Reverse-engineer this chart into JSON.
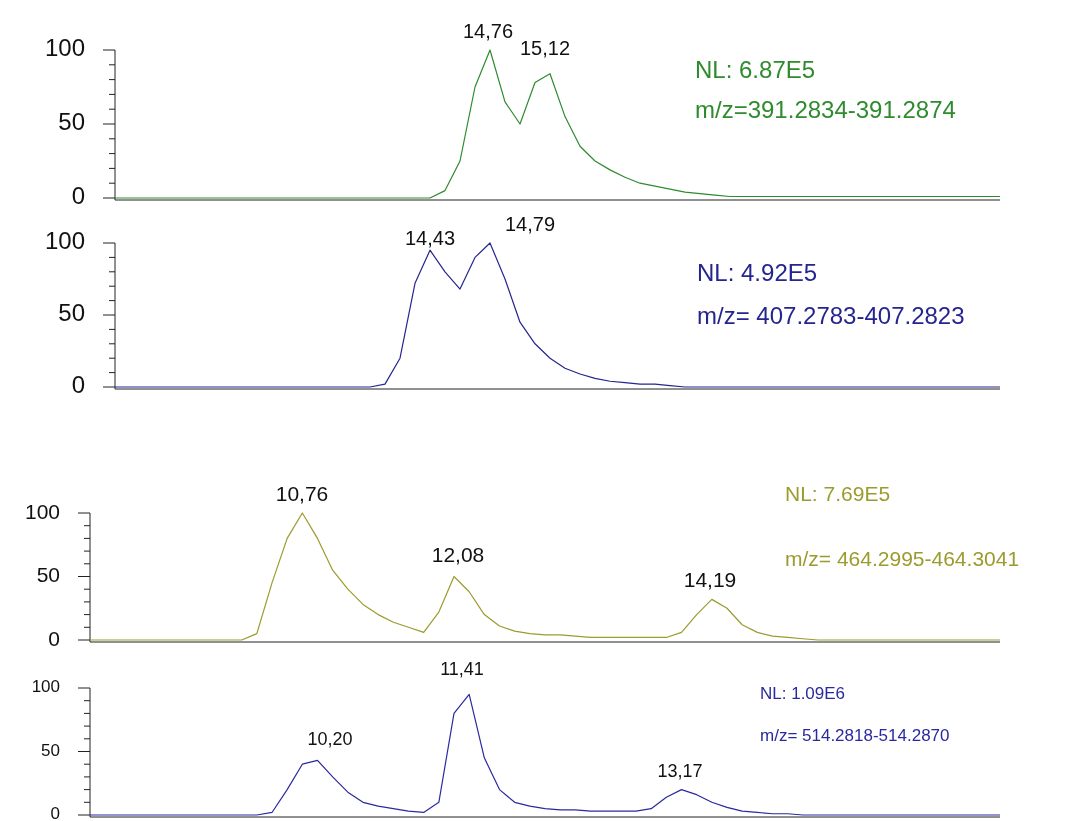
{
  "chart_data": [
    {
      "type": "line",
      "categories": [
        null,
        null,
        null,
        null,
        null,
        null,
        null,
        null,
        null,
        null,
        null,
        null,
        null,
        null,
        null,
        null,
        null,
        null,
        null,
        null,
        null,
        null,
        null,
        null,
        null,
        null,
        null,
        null,
        null,
        null,
        null,
        null,
        null,
        null,
        null,
        null,
        null,
        null,
        null,
        null,
        null,
        null,
        null,
        null,
        null,
        null,
        null,
        null,
        null,
        null,
        null,
        null,
        null,
        null,
        null,
        null,
        null,
        null,
        null,
        null
      ],
      "ylim": [
        0,
        100
      ],
      "yticks": [
        0,
        {
          "value": 10,
          "label": null
        },
        {
          "value": 20,
          "label": null
        },
        {
          "value": 30,
          "label": null
        },
        {
          "value": 40,
          "label": null
        },
        50,
        {
          "value": 60,
          "label": null
        },
        {
          "value": 70,
          "label": null
        },
        {
          "value": 80,
          "label": null
        },
        {
          "value": 90,
          "label": null
        },
        100
      ],
      "tick_labels": "y",
      "series": [
        {
          "color": "#2e8b2e",
          "values": [
            0,
            0,
            0,
            0,
            0,
            0,
            0,
            0,
            0,
            0,
            0,
            0,
            0,
            0,
            0,
            0,
            0,
            0,
            0,
            0,
            0,
            0,
            5,
            25,
            75,
            100,
            65,
            50,
            78,
            84,
            55,
            35,
            25,
            19,
            14,
            10,
            8,
            6,
            4,
            3,
            2,
            1,
            1,
            1,
            1,
            1,
            1,
            1,
            1,
            1,
            1,
            1,
            1,
            1,
            1,
            1,
            1,
            1,
            1,
            1
          ]
        }
      ],
      "annotations": [
        "14,76",
        "15,12",
        "NL: 6.87E5",
        "m/z=391.2834-391.2874"
      ]
    },
    {
      "type": "line",
      "categories": [
        null,
        null,
        null,
        null,
        null,
        null,
        null,
        null,
        null,
        null,
        null,
        null,
        null,
        null,
        null,
        null,
        null,
        null,
        null,
        null,
        null,
        null,
        null,
        null,
        null,
        null,
        null,
        null,
        null,
        null,
        null,
        null,
        null,
        null,
        null,
        null,
        null,
        null,
        null,
        null,
        null,
        null,
        null,
        null,
        null,
        null,
        null,
        null,
        null,
        null,
        null,
        null,
        null,
        null,
        null,
        null,
        null,
        null,
        null,
        null
      ],
      "ylim": [
        0,
        100
      ],
      "yticks": [
        0,
        {
          "value": 10,
          "label": null
        },
        {
          "value": 20,
          "label": null
        },
        {
          "value": 30,
          "label": null
        },
        {
          "value": 40,
          "label": null
        },
        50,
        {
          "value": 60,
          "label": null
        },
        {
          "value": 70,
          "label": null
        },
        {
          "value": 80,
          "label": null
        },
        {
          "value": 90,
          "label": null
        },
        100
      ],
      "tick_labels": "y",
      "series": [
        {
          "color": "#25258f",
          "values": [
            0,
            0,
            0,
            0,
            0,
            0,
            0,
            0,
            0,
            0,
            0,
            0,
            0,
            0,
            0,
            0,
            0,
            0,
            2,
            20,
            72,
            95,
            80,
            68,
            90,
            100,
            75,
            45,
            30,
            20,
            13,
            9,
            6,
            4,
            3,
            2,
            2,
            1,
            0,
            0,
            0,
            0,
            0,
            0,
            0,
            0,
            0,
            0,
            0,
            0,
            0,
            0,
            0,
            0,
            0,
            0,
            0,
            0,
            0,
            0
          ]
        }
      ],
      "annotations": [
        "14,43",
        "14,79",
        "NL: 4.92E5",
        "m/z= 407.2783-407.2823"
      ]
    },
    {
      "type": "line",
      "categories": [
        null,
        null,
        null,
        null,
        null,
        null,
        null,
        null,
        null,
        null,
        null,
        null,
        null,
        null,
        null,
        null,
        null,
        null,
        null,
        null,
        null,
        null,
        null,
        null,
        null,
        null,
        null,
        null,
        null,
        null,
        null,
        null,
        null,
        null,
        null,
        null,
        null,
        null,
        null,
        null,
        null,
        null,
        null,
        null,
        null,
        null,
        null,
        null,
        null,
        null,
        null,
        null,
        null,
        null,
        null,
        null,
        null,
        null,
        null,
        null,
        null
      ],
      "ylim": [
        0,
        100
      ],
      "yticks": [
        0,
        {
          "value": 10,
          "label": null
        },
        {
          "value": 20,
          "label": null
        },
        {
          "value": 30,
          "label": null
        },
        {
          "value": 40,
          "label": null
        },
        50,
        {
          "value": 60,
          "label": null
        },
        {
          "value": 70,
          "label": null
        },
        {
          "value": 80,
          "label": null
        },
        {
          "value": 90,
          "label": null
        },
        100
      ],
      "tick_labels": "y",
      "series": [
        {
          "color": "#9b9b2e",
          "values": [
            0,
            0,
            0,
            0,
            0,
            0,
            0,
            0,
            0,
            0,
            0,
            5,
            45,
            80,
            100,
            80,
            55,
            40,
            28,
            20,
            14,
            10,
            6,
            22,
            50,
            38,
            20,
            11,
            7,
            5,
            4,
            4,
            3,
            2,
            2,
            2,
            2,
            2,
            2,
            6,
            20,
            32,
            25,
            12,
            6,
            3,
            2,
            1,
            0,
            0,
            0,
            0,
            0,
            0,
            0,
            0,
            0,
            0,
            0,
            0,
            0
          ]
        }
      ],
      "annotations": [
        "10,76",
        "12,08",
        "14,19",
        "NL: 7.69E5",
        "m/z= 464.2995-464.3041"
      ]
    },
    {
      "type": "line",
      "categories": [
        null,
        null,
        null,
        null,
        null,
        null,
        null,
        null,
        null,
        null,
        null,
        null,
        null,
        null,
        null,
        null,
        null,
        null,
        null,
        null,
        null,
        null,
        null,
        null,
        null,
        null,
        null,
        null,
        null,
        null,
        null,
        null,
        null,
        null,
        null,
        null,
        null,
        null,
        null,
        null,
        null,
        null,
        null,
        null,
        null,
        null,
        null,
        null,
        null,
        null,
        null,
        null,
        null,
        null,
        null,
        null,
        null,
        null,
        null,
        null,
        null
      ],
      "ylim": [
        0,
        100
      ],
      "yticks": [
        0,
        {
          "value": 10,
          "label": null
        },
        {
          "value": 20,
          "label": null
        },
        {
          "value": 30,
          "label": null
        },
        {
          "value": 40,
          "label": null
        },
        50,
        {
          "value": 60,
          "label": null
        },
        {
          "value": 70,
          "label": null
        },
        {
          "value": 80,
          "label": null
        },
        {
          "value": 90,
          "label": null
        },
        100
      ],
      "tick_labels": "y",
      "series": [
        {
          "color": "#2a2aa0",
          "values": [
            0,
            0,
            0,
            0,
            0,
            0,
            0,
            0,
            0,
            0,
            0,
            0,
            2,
            20,
            40,
            43,
            30,
            18,
            10,
            7,
            5,
            3,
            2,
            10,
            80,
            95,
            45,
            20,
            10,
            7,
            5,
            4,
            4,
            3,
            3,
            3,
            3,
            5,
            14,
            20,
            16,
            10,
            6,
            3,
            2,
            1,
            1,
            0,
            0,
            0,
            0,
            0,
            0,
            0,
            0,
            0,
            0,
            0,
            0,
            0,
            0
          ]
        }
      ],
      "annotations": [
        "10,20",
        "11,41",
        "13,17",
        "NL: 1.09E6",
        "m/z= 514.2818-514.2870"
      ]
    }
  ]
}
